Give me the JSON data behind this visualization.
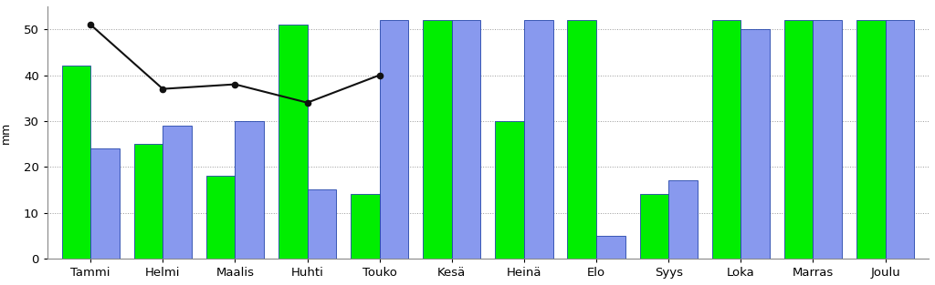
{
  "categories": [
    "Tammi",
    "Helmi",
    "Maalis",
    "Huhti",
    "Touko",
    "Kesä",
    "Heinä",
    "Elo",
    "Syys",
    "Loka",
    "Marras",
    "Joulu"
  ],
  "green_bars": [
    42,
    25,
    18,
    51,
    14,
    52,
    30,
    52,
    14,
    52,
    52,
    52
  ],
  "blue_bars": [
    24,
    29,
    30,
    15,
    52,
    52,
    52,
    5,
    17,
    50,
    52,
    52
  ],
  "line_values": [
    51,
    37,
    38,
    34,
    40,
    null,
    null,
    null,
    null,
    null,
    null,
    null
  ],
  "green_color": "#00ee00",
  "blue_color": "#8899ee",
  "bar_edge_color": "#2244aa",
  "line_color": "#111111",
  "ylabel": "mm",
  "ylim": [
    0,
    55
  ],
  "yticks": [
    0,
    10,
    20,
    30,
    40,
    50
  ],
  "background_color": "#ffffff",
  "plot_bg_color": "#ffffff",
  "grid_color": "#999999",
  "bar_width": 0.4,
  "figsize": [
    10.24,
    3.13
  ],
  "dpi": 100
}
